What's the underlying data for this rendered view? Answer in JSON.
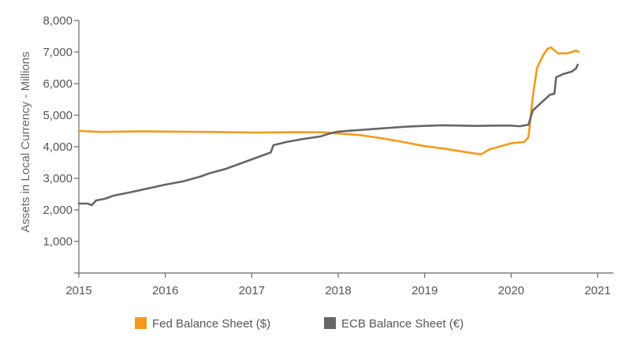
{
  "chart_data": {
    "type": "line",
    "title": "",
    "xlabel": "",
    "ylabel": "Assets in Local Currency - Millions",
    "xlim": [
      2015,
      2021
    ],
    "ylim": [
      0,
      8000
    ],
    "x_ticks": [
      "2015",
      "2016",
      "2017",
      "2018",
      "2019",
      "2020",
      "2021"
    ],
    "y_ticks": [
      "",
      "1,000",
      "2,000",
      "3,000",
      "4,000",
      "5,000",
      "6,000",
      "7,000",
      "8,000"
    ],
    "grid": false,
    "legend_position": "bottom-center",
    "series": [
      {
        "name": "Fed Balance Sheet ($)",
        "color": "#f39a1e",
        "points": [
          [
            2015.0,
            4500
          ],
          [
            2015.25,
            4470
          ],
          [
            2015.5,
            4480
          ],
          [
            2015.75,
            4490
          ],
          [
            2016.0,
            4480
          ],
          [
            2016.5,
            4470
          ],
          [
            2017.0,
            4450
          ],
          [
            2017.5,
            4460
          ],
          [
            2017.8,
            4460
          ],
          [
            2018.0,
            4420
          ],
          [
            2018.25,
            4370
          ],
          [
            2018.5,
            4270
          ],
          [
            2018.75,
            4150
          ],
          [
            2019.0,
            4020
          ],
          [
            2019.25,
            3930
          ],
          [
            2019.5,
            3820
          ],
          [
            2019.65,
            3760
          ],
          [
            2019.75,
            3920
          ],
          [
            2019.9,
            4030
          ],
          [
            2020.0,
            4110
          ],
          [
            2020.15,
            4150
          ],
          [
            2020.2,
            4300
          ],
          [
            2020.25,
            5600
          ],
          [
            2020.3,
            6500
          ],
          [
            2020.37,
            6900
          ],
          [
            2020.42,
            7100
          ],
          [
            2020.46,
            7150
          ],
          [
            2020.5,
            7050
          ],
          [
            2020.55,
            6950
          ],
          [
            2020.6,
            6960
          ],
          [
            2020.65,
            6960
          ],
          [
            2020.7,
            7000
          ],
          [
            2020.75,
            7050
          ],
          [
            2020.78,
            7000
          ]
        ]
      },
      {
        "name": "ECB Balance Sheet (€)",
        "color": "#666666",
        "points": [
          [
            2015.0,
            2200
          ],
          [
            2015.1,
            2200
          ],
          [
            2015.15,
            2150
          ],
          [
            2015.2,
            2300
          ],
          [
            2015.3,
            2350
          ],
          [
            2015.4,
            2450
          ],
          [
            2015.6,
            2560
          ],
          [
            2015.8,
            2680
          ],
          [
            2016.0,
            2800
          ],
          [
            2016.2,
            2900
          ],
          [
            2016.4,
            3050
          ],
          [
            2016.5,
            3150
          ],
          [
            2016.7,
            3300
          ],
          [
            2016.9,
            3500
          ],
          [
            2017.0,
            3600
          ],
          [
            2017.15,
            3750
          ],
          [
            2017.22,
            3820
          ],
          [
            2017.25,
            4050
          ],
          [
            2017.4,
            4150
          ],
          [
            2017.6,
            4250
          ],
          [
            2017.8,
            4330
          ],
          [
            2017.9,
            4420
          ],
          [
            2018.0,
            4480
          ],
          [
            2018.2,
            4520
          ],
          [
            2018.4,
            4560
          ],
          [
            2018.6,
            4600
          ],
          [
            2018.8,
            4640
          ],
          [
            2019.0,
            4660
          ],
          [
            2019.2,
            4680
          ],
          [
            2019.4,
            4670
          ],
          [
            2019.6,
            4660
          ],
          [
            2019.8,
            4670
          ],
          [
            2020.0,
            4670
          ],
          [
            2020.1,
            4650
          ],
          [
            2020.2,
            4700
          ],
          [
            2020.25,
            5150
          ],
          [
            2020.35,
            5400
          ],
          [
            2020.45,
            5650
          ],
          [
            2020.5,
            5680
          ],
          [
            2020.52,
            6200
          ],
          [
            2020.6,
            6300
          ],
          [
            2020.7,
            6380
          ],
          [
            2020.75,
            6480
          ],
          [
            2020.77,
            6600
          ]
        ]
      }
    ]
  }
}
